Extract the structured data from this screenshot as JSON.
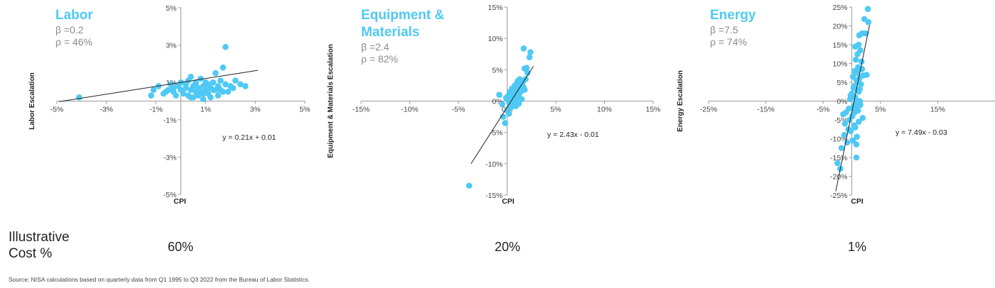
{
  "chart_data": [
    {
      "type": "scatter",
      "title": "Labor",
      "beta_label": "β =0.2",
      "rho_label": "ρ = 46%",
      "xlabel": "CPI",
      "ylabel": "Labor Escalation",
      "xlim": [
        -5,
        5
      ],
      "ylim": [
        -5,
        5
      ],
      "xticks": [
        "-5%",
        "-3%",
        "-1%",
        "1%",
        "3%",
        "5%"
      ],
      "yticks": [
        "5%",
        "3%",
        "1%",
        "-1%",
        "-3%",
        "-5%"
      ],
      "trendline_label": "y = 0.21x + 0.01",
      "trendline": {
        "slope": 0.21,
        "intercept": 1,
        "x_range": [
          -4.9,
          3.1
        ]
      },
      "color": "#4ec9f5",
      "points": [
        [
          -4.1,
          0.2
        ],
        [
          -1.2,
          0.3
        ],
        [
          -1.1,
          0.6
        ],
        [
          -0.9,
          0.8
        ],
        [
          -0.7,
          0.4
        ],
        [
          -0.6,
          0.5
        ],
        [
          -0.5,
          0.6
        ],
        [
          -0.4,
          0.9
        ],
        [
          -0.3,
          0.5
        ],
        [
          -0.2,
          0.3
        ],
        [
          -0.1,
          0.8
        ],
        [
          0.0,
          0.6
        ],
        [
          0.1,
          0.4
        ],
        [
          0.2,
          0.9
        ],
        [
          0.3,
          1.1
        ],
        [
          0.3,
          0.3
        ],
        [
          0.4,
          0.6
        ],
        [
          0.4,
          1.3
        ],
        [
          0.5,
          0.8
        ],
        [
          0.5,
          0.2
        ],
        [
          0.6,
          0.5
        ],
        [
          0.6,
          1.0
        ],
        [
          0.7,
          0.7
        ],
        [
          0.7,
          0.3
        ],
        [
          0.8,
          1.2
        ],
        [
          0.8,
          0.5
        ],
        [
          0.9,
          0.8
        ],
        [
          0.9,
          0.1
        ],
        [
          1.0,
          0.6
        ],
        [
          1.0,
          1.0
        ],
        [
          1.1,
          0.4
        ],
        [
          1.1,
          0.9
        ],
        [
          1.2,
          0.7
        ],
        [
          1.2,
          0.2
        ],
        [
          1.3,
          1.0
        ],
        [
          1.4,
          1.5
        ],
        [
          1.4,
          0.6
        ],
        [
          1.5,
          0.8
        ],
        [
          1.5,
          0.3
        ],
        [
          1.6,
          1.1
        ],
        [
          1.7,
          1.8
        ],
        [
          1.7,
          0.5
        ],
        [
          1.8,
          2.9
        ],
        [
          1.8,
          0.9
        ],
        [
          1.9,
          0.5
        ],
        [
          2.0,
          0.8
        ],
        [
          2.2,
          1.1
        ],
        [
          2.4,
          0.9
        ],
        [
          2.6,
          0.8
        ],
        [
          0.2,
          0.7
        ],
        [
          0.6,
          0.9
        ],
        [
          0.9,
          0.4
        ],
        [
          1.3,
          0.6
        ],
        [
          0.0,
          1.0
        ],
        [
          -0.3,
          0.7
        ],
        [
          0.4,
          0.2
        ],
        [
          1.6,
          0.6
        ],
        [
          2.1,
          0.7
        ]
      ]
    },
    {
      "type": "scatter",
      "title": "Equipment & Materials",
      "title_lines": [
        "Equipment &",
        "Materials"
      ],
      "beta_label": "β =2.4",
      "rho_label": "ρ = 82%",
      "xlabel": "CPI",
      "ylabel": "Equipment & Materials Escalation",
      "xlim": [
        -15,
        15
      ],
      "ylim": [
        -15,
        15
      ],
      "xticks": [
        "-15%",
        "-10%",
        "-5%",
        "0%",
        "5%",
        "10%",
        "15%"
      ],
      "yticks": [
        "15%",
        "10%",
        "5%",
        "0%",
        "-5%",
        "-10%",
        "-15%"
      ],
      "trendline_label": "y = 2.43x - 0.01",
      "trendline": {
        "slope": 2.43,
        "intercept": -1,
        "x_range": [
          -3.7,
          2.7
        ]
      },
      "color": "#4ec9f5",
      "points": [
        [
          -3.9,
          -13.5
        ],
        [
          -0.8,
          1.0
        ],
        [
          -0.5,
          -0.5
        ],
        [
          -0.4,
          -2.5
        ],
        [
          -0.2,
          -3.5
        ],
        [
          -0.1,
          0.5
        ],
        [
          0.0,
          -1.5
        ],
        [
          0.1,
          0.8
        ],
        [
          0.2,
          -0.2
        ],
        [
          0.2,
          -2.0
        ],
        [
          0.3,
          1.5
        ],
        [
          0.4,
          0.3
        ],
        [
          0.4,
          -1.0
        ],
        [
          0.5,
          2.0
        ],
        [
          0.6,
          0.8
        ],
        [
          0.6,
          -0.5
        ],
        [
          0.7,
          1.2
        ],
        [
          0.8,
          2.5
        ],
        [
          0.8,
          0.2
        ],
        [
          0.9,
          1.8
        ],
        [
          1.0,
          0.5
        ],
        [
          1.0,
          2.8
        ],
        [
          1.1,
          1.2
        ],
        [
          1.1,
          3.2
        ],
        [
          1.2,
          0.8
        ],
        [
          1.3,
          2.0
        ],
        [
          1.3,
          3.5
        ],
        [
          1.4,
          1.5
        ],
        [
          1.5,
          2.8
        ],
        [
          1.5,
          0.3
        ],
        [
          1.6,
          3.0
        ],
        [
          1.7,
          2.2
        ],
        [
          1.7,
          8.4
        ],
        [
          1.8,
          5.2
        ],
        [
          1.9,
          3.5
        ],
        [
          2.0,
          5.3
        ],
        [
          2.1,
          4.5
        ],
        [
          2.3,
          7.0
        ],
        [
          2.4,
          7.8
        ],
        [
          1.2,
          -0.4
        ],
        [
          0.5,
          -0.2
        ],
        [
          0.9,
          -0.8
        ],
        [
          1.4,
          2.6
        ],
        [
          0.3,
          0.7
        ],
        [
          1.0,
          1.5
        ],
        [
          1.8,
          1.8
        ]
      ]
    },
    {
      "type": "scatter",
      "title": "Energy",
      "beta_label": "β =7.5",
      "rho_label": "ρ = 74%",
      "xlabel": "CPI",
      "ylabel": "Energy Escalation",
      "xlim": [
        -25,
        25
      ],
      "ylim": [
        -25,
        25
      ],
      "xticks": [
        "-25%",
        "-15%",
        "-5%",
        "5%",
        "15%"
      ],
      "yticks": [
        "25%",
        "20%",
        "15%",
        "10%",
        "5%",
        "0%",
        "-5%",
        "-10%",
        "-15%",
        "-20%",
        "-25%"
      ],
      "trendline_label": "y = 7.49x - 0.03",
      "trendline": {
        "slope": 7.49,
        "intercept": -3,
        "x_range": [
          -2.8,
          3.1
        ]
      },
      "color": "#4ec9f5",
      "points": [
        [
          -2.5,
          -16.5
        ],
        [
          -2.0,
          -18.0
        ],
        [
          -1.8,
          -12.5
        ],
        [
          -1.5,
          -3.5
        ],
        [
          -1.3,
          -9.0
        ],
        [
          -1.2,
          -6.0
        ],
        [
          -1.0,
          -3.0
        ],
        [
          -0.8,
          -11.0
        ],
        [
          -0.6,
          -7.5
        ],
        [
          -0.5,
          -2.0
        ],
        [
          -0.4,
          -5.0
        ],
        [
          -0.3,
          0.5
        ],
        [
          -0.2,
          -8.0
        ],
        [
          0.0,
          2.0
        ],
        [
          0.1,
          -4.0
        ],
        [
          0.2,
          -10.5
        ],
        [
          0.2,
          6.5
        ],
        [
          0.3,
          -1.5
        ],
        [
          0.4,
          4.0
        ],
        [
          0.4,
          -6.5
        ],
        [
          0.5,
          8.0
        ],
        [
          0.5,
          -3.0
        ],
        [
          0.6,
          1.0
        ],
        [
          0.6,
          14.5
        ],
        [
          0.7,
          -0.5
        ],
        [
          0.7,
          11.0
        ],
        [
          0.8,
          5.5
        ],
        [
          0.8,
          -15.0
        ],
        [
          0.9,
          3.0
        ],
        [
          0.9,
          -9.5
        ],
        [
          1.0,
          7.5
        ],
        [
          1.0,
          12.5
        ],
        [
          1.1,
          -2.5
        ],
        [
          1.1,
          9.0
        ],
        [
          1.2,
          2.5
        ],
        [
          1.2,
          -5.5
        ],
        [
          1.3,
          6.0
        ],
        [
          1.3,
          17.5
        ],
        [
          1.4,
          0.0
        ],
        [
          1.5,
          13.5
        ],
        [
          1.5,
          -1.0
        ],
        [
          1.6,
          4.5
        ],
        [
          1.7,
          10.5
        ],
        [
          1.8,
          18.0
        ],
        [
          1.8,
          8.5
        ],
        [
          1.9,
          -4.5
        ],
        [
          2.0,
          6.8
        ],
        [
          2.2,
          21.8
        ],
        [
          2.4,
          18.0
        ],
        [
          2.8,
          24.5
        ],
        [
          2.9,
          21.0
        ],
        [
          2.6,
          7.0
        ],
        [
          0.3,
          3.5
        ],
        [
          0.9,
          -1.5
        ],
        [
          1.4,
          3.2
        ],
        [
          0.6,
          -7.0
        ],
        [
          1.0,
          5.0
        ],
        [
          -0.2,
          1.5
        ],
        [
          0.8,
          -11.5
        ],
        [
          1.2,
          15.0
        ]
      ]
    }
  ],
  "bottom": {
    "row_label_line1": "Illustrative",
    "row_label_line2": "Cost %",
    "pct_labor": "60%",
    "pct_equipment": "20%",
    "pct_energy": "1%",
    "source": "Source: NISA  calculations based on quarterly data  from Q1  1995 to Q3 2022  from the Bureau of Labor Statistics."
  }
}
